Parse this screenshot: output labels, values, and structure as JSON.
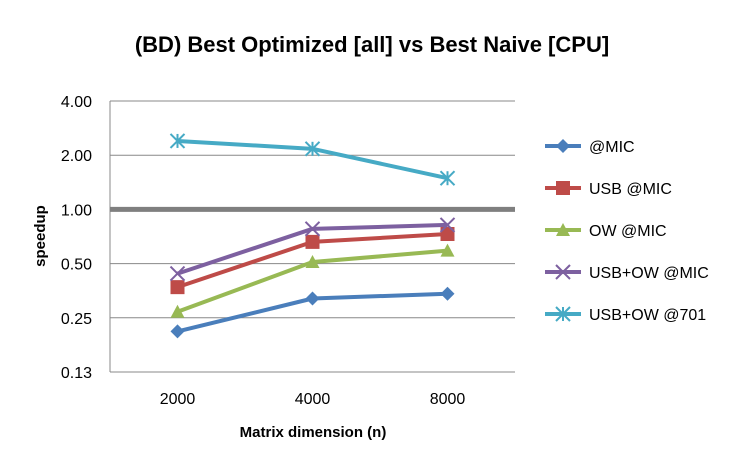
{
  "chart_data": {
    "type": "line",
    "title": "(BD) Best Optimized [all] vs Best Naive [CPU]",
    "xlabel": "Matrix dimension (n)",
    "ylabel": "speedup",
    "y_scale": "log2",
    "ylim": [
      0.125,
      4
    ],
    "y_ticks": [
      "4.00",
      "2.00",
      "1.00",
      "0.50",
      "0.25",
      "0.13"
    ],
    "categories": [
      "2000",
      "4000",
      "8000"
    ],
    "reference_line": {
      "y": 1.0,
      "color": "#7f7f7f"
    },
    "legend_position": "right",
    "grid": "horizontal",
    "series": [
      {
        "name": "@MIC",
        "values": [
          0.21,
          0.32,
          0.34
        ],
        "color": "#4a7ebb",
        "marker": "diamond"
      },
      {
        "name": "USB @MIC",
        "values": [
          0.37,
          0.66,
          0.73
        ],
        "color": "#be4b48",
        "marker": "square"
      },
      {
        "name": "OW @MIC",
        "values": [
          0.27,
          0.51,
          0.59
        ],
        "color": "#98b954",
        "marker": "triangle"
      },
      {
        "name": "USB+OW @MIC",
        "values": [
          0.44,
          0.78,
          0.82
        ],
        "color": "#7d60a0",
        "marker": "x"
      },
      {
        "name": "USB+OW @701",
        "values": [
          2.4,
          2.17,
          1.49
        ],
        "color": "#46aac5",
        "marker": "star"
      }
    ]
  }
}
